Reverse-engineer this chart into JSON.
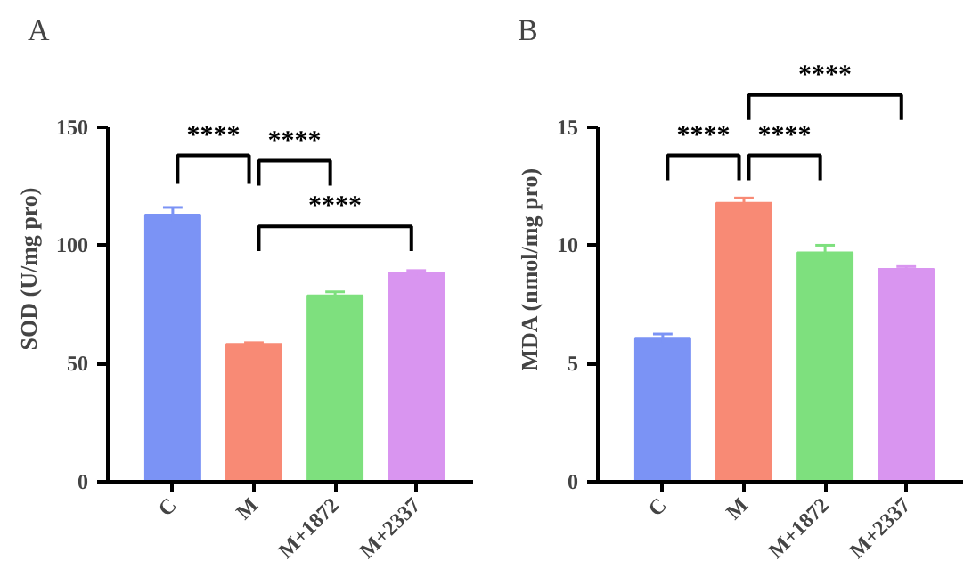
{
  "chart_data": [
    {
      "type": "bar",
      "title": "A",
      "ylabel": "SOD (U/mg pro)",
      "categories": [
        "C",
        "M",
        "M+1872",
        "M+2337"
      ],
      "values": [
        113,
        58.3,
        78.8,
        88.3
      ],
      "errors": [
        3,
        0.5,
        1.5,
        1
      ],
      "colors": [
        "#7b93f5",
        "#f88a75",
        "#7ee07e",
        "#d995f0"
      ],
      "ylim": [
        0,
        150
      ],
      "yticks": [
        0,
        50,
        100,
        150
      ],
      "grid": false,
      "annotations": [
        "****",
        "****",
        "****"
      ]
    },
    {
      "type": "bar",
      "title": "B",
      "ylabel": "MDA (nmol/mg pro)",
      "categories": [
        "C",
        "M",
        "M+1872",
        "M+2337"
      ],
      "values": [
        6.05,
        11.8,
        9.7,
        9.0
      ],
      "errors": [
        0.2,
        0.2,
        0.3,
        0.1
      ],
      "colors": [
        "#7b93f5",
        "#f88a75",
        "#7ee07e",
        "#d995f0"
      ],
      "ylim": [
        0,
        15
      ],
      "yticks": [
        0,
        5,
        10,
        15
      ],
      "grid": false,
      "annotations": [
        "****",
        "****",
        "****"
      ]
    }
  ]
}
